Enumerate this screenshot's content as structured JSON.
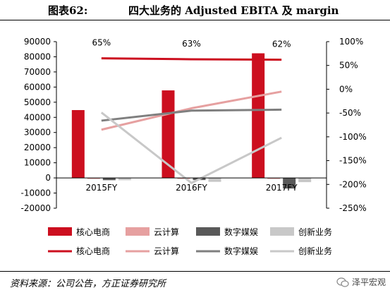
{
  "figure": {
    "label": "图表62:",
    "title": "四大业务的 Adjusted EBITA 及 margin"
  },
  "source": "资料来源：公司公告，方正证券研究所",
  "watermark": "泽平宏观",
  "colors": {
    "core": "#cc0f1f",
    "cloud": "#e6a0a0",
    "digital": "#595959",
    "innovation": "#c8c8c8"
  },
  "chart_data": {
    "type": "bar",
    "categories": [
      "2015FY",
      "2016FY",
      "2017FY"
    ],
    "left_axis": {
      "min": -20000,
      "max": 90000,
      "step": 10000,
      "ticks": [
        "-20000",
        "-10000",
        "0",
        "10000",
        "20000",
        "30000",
        "40000",
        "50000",
        "60000",
        "70000",
        "80000",
        "90000"
      ]
    },
    "right_axis": {
      "min": -250,
      "max": 100,
      "step": 50,
      "ticks": [
        "-250%",
        "-200%",
        "-150%",
        "-100%",
        "-50%",
        "0%",
        "50%",
        "100%"
      ]
    },
    "bar_series": [
      {
        "name": "核心电商",
        "color": "#cc0f1f",
        "values": [
          44800,
          57800,
          82300
        ]
      },
      {
        "name": "云计算",
        "color": "#e6a0a0",
        "values": [
          -400,
          -400,
          -400
        ]
      },
      {
        "name": "数字媒娱",
        "color": "#595959",
        "values": [
          -1500,
          -1400,
          -7000
        ]
      },
      {
        "name": "创新业务",
        "color": "#c8c8c8",
        "values": [
          -1500,
          -2600,
          -2800
        ]
      }
    ],
    "line_series": [
      {
        "name": "核心电商",
        "color": "#cc0f1f",
        "values": [
          65,
          63,
          62
        ]
      },
      {
        "name": "云计算",
        "color": "#e6a0a0",
        "values": [
          -85,
          -40,
          -5
        ]
      },
      {
        "name": "数字媒娱",
        "color": "#7f7f7f",
        "values": [
          -66,
          -45,
          -43
        ]
      },
      {
        "name": "创新业务",
        "color": "#c8c8c8",
        "values": [
          -49,
          -197,
          -102
        ]
      }
    ],
    "data_labels": [
      "65%",
      "63%",
      "62%"
    ],
    "legend_position": "bottom",
    "grid": false
  }
}
